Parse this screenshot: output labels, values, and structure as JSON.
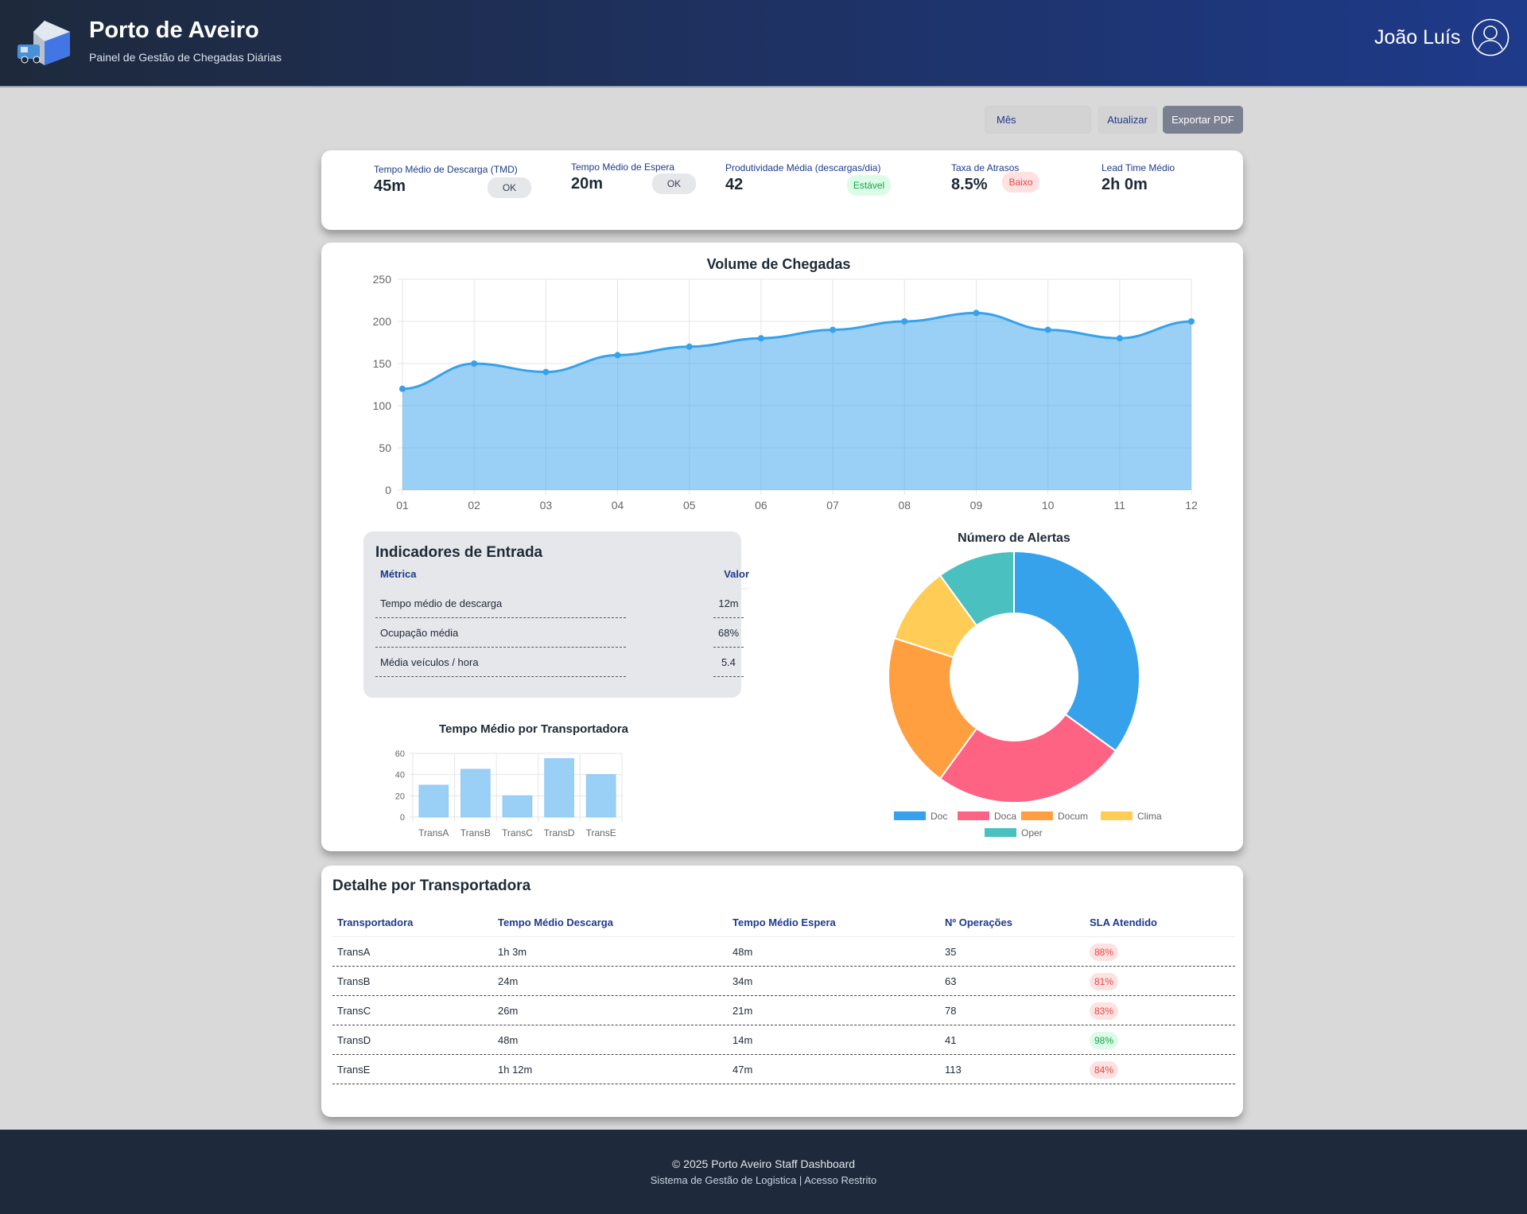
{
  "header": {
    "title": "Porto de Aveiro",
    "subtitle": "Painel de Gestão de Chegadas Diárias",
    "user": "João Luís",
    "logo_icon": "truck-box-icon",
    "avatar_icon": "user-circle-icon"
  },
  "controls": {
    "period_select": "Mês",
    "refresh": "Atualizar",
    "export": "Exportar PDF"
  },
  "kpis": [
    {
      "label": "Tempo Médio de Descarga (TMD)",
      "value": "45m",
      "badge": "OK",
      "badge_status": "neutral"
    },
    {
      "label": "Tempo Médio de Espera",
      "value": "20m",
      "badge": "OK",
      "badge_status": "neutral"
    },
    {
      "label": "Produtividade Média (descargas/dia)",
      "value": "42",
      "badge": "Estável",
      "badge_status": "good"
    },
    {
      "label": "Taxa de Atrasos",
      "value": "8.5%",
      "badge": "Baixo",
      "badge_status": "bad"
    },
    {
      "label": "Lead Time Médio",
      "value": "2h 0m",
      "badge": "",
      "badge_status": ""
    }
  ],
  "indicators": {
    "title": "Indicadores de Entrada",
    "col_metric": "Métrica",
    "col_value": "Valor",
    "rows": [
      {
        "metric": "Tempo médio de descarga",
        "value": "12m"
      },
      {
        "metric": "Ocupação média",
        "value": "68%"
      },
      {
        "metric": "Média veículos / hora",
        "value": "5.4"
      }
    ]
  },
  "chart_data": [
    {
      "type": "area",
      "title": "Volume de Chegadas",
      "categories": [
        "01",
        "02",
        "03",
        "04",
        "05",
        "06",
        "07",
        "08",
        "09",
        "10",
        "11",
        "12"
      ],
      "values": [
        120,
        150,
        140,
        160,
        170,
        180,
        190,
        200,
        210,
        190,
        180,
        200
      ],
      "ylim": [
        0,
        250
      ],
      "yticks": [
        0,
        50,
        100,
        150,
        200,
        250
      ],
      "grid": true,
      "color": "#36a2eb"
    },
    {
      "type": "bar",
      "title": "Tempo Médio por Transportadora",
      "categories": [
        "TransA",
        "TransB",
        "TransC",
        "TransD",
        "TransE"
      ],
      "values": [
        30,
        45,
        20,
        55,
        40
      ],
      "ylim": [
        0,
        60
      ],
      "yticks": [
        0,
        20,
        40,
        60
      ],
      "grid": true,
      "color": "#9ad0f5"
    },
    {
      "type": "pie",
      "title": "Número de Alertas",
      "labels": [
        "Doc",
        "Doca",
        "Docum",
        "Clima",
        "Oper"
      ],
      "values": [
        35,
        25,
        20,
        10,
        10
      ],
      "colors": [
        "#36a2eb",
        "#ff6384",
        "#ff9f40",
        "#ffcd56",
        "#4bc0c0"
      ],
      "legend": "bottom"
    }
  ],
  "table": {
    "title": "Detalhe por Transportadora",
    "headers": [
      "Transportadora",
      "Tempo Médio Descarga",
      "Tempo Médio Espera",
      "Nº Operações",
      "SLA Atendido"
    ],
    "rows": [
      {
        "carrier": "TransA",
        "unload": "1h 3m",
        "wait": "48m",
        "ops": "35",
        "sla": "88%",
        "sla_status": "bad"
      },
      {
        "carrier": "TransB",
        "unload": "24m",
        "wait": "34m",
        "ops": "63",
        "sla": "81%",
        "sla_status": "bad"
      },
      {
        "carrier": "TransC",
        "unload": "26m",
        "wait": "21m",
        "ops": "78",
        "sla": "83%",
        "sla_status": "bad"
      },
      {
        "carrier": "TransD",
        "unload": "48m",
        "wait": "14m",
        "ops": "41",
        "sla": "98%",
        "sla_status": "good"
      },
      {
        "carrier": "TransE",
        "unload": "1h 12m",
        "wait": "47m",
        "ops": "113",
        "sla": "84%",
        "sla_status": "bad"
      }
    ]
  },
  "footer": {
    "line1": "© 2025 Porto Aveiro Staff Dashboard",
    "line2": "Sistema de Gestão de Logistica | Acesso Restrito"
  }
}
